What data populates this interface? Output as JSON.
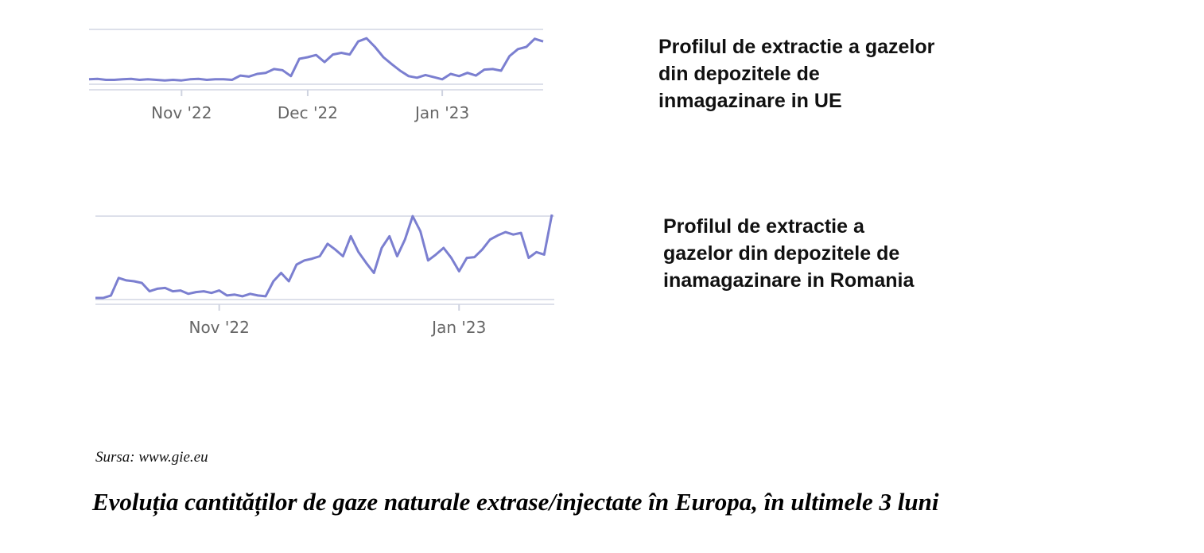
{
  "chart_data": [
    {
      "type": "line",
      "title": [
        "Profilul de extractie a gazelor",
        "din depozitele de",
        "inmagazinare in UE"
      ],
      "color": "#7b7fd0",
      "ylim": [
        0,
        100
      ],
      "categories": [
        null,
        null,
        null,
        null,
        null,
        null,
        null,
        null,
        null,
        null,
        null,
        "Nov '22",
        null,
        null,
        null,
        null,
        null,
        null,
        null,
        null,
        null,
        null,
        null,
        null,
        null,
        null,
        "Dec '22",
        null,
        null,
        null,
        null,
        null,
        null,
        null,
        null,
        null,
        null,
        null,
        null,
        null,
        null,
        null,
        "Jan '23",
        null,
        null,
        null,
        null,
        null,
        null,
        null,
        null,
        null,
        null,
        null,
        null
      ],
      "values": [
        12,
        13,
        11,
        11,
        12,
        13,
        11,
        12,
        11,
        10,
        11,
        10,
        12,
        13,
        11,
        12,
        12,
        11,
        19,
        17,
        22,
        24,
        31,
        29,
        18,
        50,
        53,
        57,
        44,
        58,
        61,
        58,
        82,
        88,
        72,
        53,
        40,
        28,
        18,
        15,
        20,
        16,
        12,
        22,
        18,
        24,
        19,
        30,
        31,
        28,
        55,
        68,
        72,
        87,
        82
      ]
    },
    {
      "type": "line",
      "title": [
        "Profilul de extractie a",
        "gazelor din depozitele de",
        "inamagazinare in Romania"
      ],
      "color": "#7b7fd0",
      "ylim": [
        0,
        100
      ],
      "categories": [
        null,
        null,
        null,
        null,
        null,
        null,
        null,
        null,
        null,
        null,
        null,
        null,
        null,
        null,
        null,
        null,
        "Nov '22",
        null,
        null,
        null,
        null,
        null,
        null,
        null,
        null,
        null,
        null,
        null,
        null,
        null,
        null,
        null,
        null,
        null,
        null,
        null,
        null,
        null,
        null,
        null,
        null,
        null,
        null,
        null,
        null,
        null,
        null,
        "Jan '23",
        null,
        null,
        null,
        null,
        null,
        null,
        null,
        null,
        null,
        null,
        null,
        null
      ],
      "values": [
        0,
        0,
        3,
        24,
        21,
        20,
        18,
        8,
        11,
        12,
        8,
        9,
        5,
        7,
        8,
        6,
        9,
        3,
        4,
        2,
        5,
        3,
        2,
        20,
        30,
        20,
        40,
        45,
        47,
        50,
        65,
        58,
        50,
        74,
        55,
        42,
        30,
        60,
        74,
        50,
        70,
        98,
        80,
        45,
        52,
        60,
        48,
        32,
        48,
        49,
        58,
        70,
        75,
        79,
        76,
        78,
        48,
        55,
        52,
        100
      ]
    }
  ],
  "source": "Sursa: www.gie.eu",
  "caption": "Evoluția cantităților de gaze naturale extrase/injectate în Europa, în ultimele 3 luni"
}
